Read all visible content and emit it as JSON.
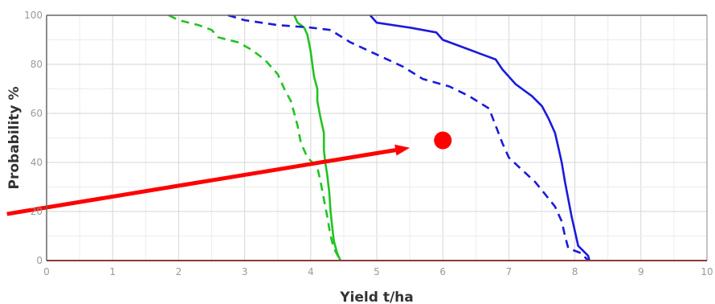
{
  "chart_data": {
    "type": "line",
    "title": "",
    "xlabel": "Yield t/ha",
    "ylabel": "Probability %",
    "xlim": [
      0,
      10
    ],
    "ylim": [
      0,
      100
    ],
    "xticks": [
      "0",
      "1",
      "2",
      "3",
      "4",
      "5",
      "6",
      "7",
      "8",
      "9",
      "10"
    ],
    "yticks": [
      "0",
      "20",
      "40",
      "60",
      "80",
      "100"
    ],
    "grid": true,
    "legend": "none",
    "colors": {
      "green": "#22c322",
      "blue": "#1a1adc",
      "marker": "#ff0000",
      "arrow": "#ff0000",
      "baseline": "#8b3a3a"
    },
    "series": [
      {
        "color": "#22c322",
        "dash": false,
        "points": [
          [
            3.75,
            100
          ],
          [
            3.8,
            97
          ],
          [
            3.9,
            95
          ],
          [
            3.95,
            92
          ],
          [
            4.0,
            85
          ],
          [
            4.05,
            75
          ],
          [
            4.1,
            70
          ],
          [
            4.1,
            65
          ],
          [
            4.15,
            58
          ],
          [
            4.2,
            52
          ],
          [
            4.2,
            45
          ],
          [
            4.22,
            40
          ],
          [
            4.25,
            35
          ],
          [
            4.28,
            28
          ],
          [
            4.3,
            20
          ],
          [
            4.32,
            15
          ],
          [
            4.35,
            8
          ],
          [
            4.4,
            3
          ],
          [
            4.45,
            0
          ]
        ]
      },
      {
        "color": "#22c322",
        "dash": true,
        "points": [
          [
            1.85,
            100
          ],
          [
            2.0,
            98
          ],
          [
            2.3,
            96
          ],
          [
            2.5,
            94
          ],
          [
            2.6,
            91
          ],
          [
            2.9,
            89
          ],
          [
            3.1,
            86
          ],
          [
            3.3,
            82
          ],
          [
            3.5,
            76
          ],
          [
            3.6,
            70
          ],
          [
            3.7,
            65
          ],
          [
            3.75,
            60
          ],
          [
            3.8,
            55
          ],
          [
            3.85,
            48
          ],
          [
            3.95,
            42
          ],
          [
            4.1,
            38
          ],
          [
            4.15,
            32
          ],
          [
            4.2,
            25
          ],
          [
            4.25,
            18
          ],
          [
            4.3,
            10
          ],
          [
            4.35,
            5
          ],
          [
            4.45,
            0
          ]
        ]
      },
      {
        "color": "#1a1adc",
        "dash": false,
        "points": [
          [
            4.9,
            100
          ],
          [
            5.0,
            97
          ],
          [
            5.5,
            95
          ],
          [
            5.9,
            93
          ],
          [
            6.0,
            90
          ],
          [
            6.3,
            87
          ],
          [
            6.6,
            84
          ],
          [
            6.8,
            82
          ],
          [
            6.9,
            78
          ],
          [
            7.0,
            75
          ],
          [
            7.1,
            72
          ],
          [
            7.2,
            70
          ],
          [
            7.35,
            67
          ],
          [
            7.5,
            63
          ],
          [
            7.6,
            58
          ],
          [
            7.7,
            52
          ],
          [
            7.75,
            46
          ],
          [
            7.8,
            40
          ],
          [
            7.85,
            32
          ],
          [
            7.9,
            25
          ],
          [
            7.95,
            18
          ],
          [
            8.0,
            12
          ],
          [
            8.05,
            6
          ],
          [
            8.2,
            2
          ],
          [
            8.22,
            0
          ]
        ]
      },
      {
        "color": "#1a1adc",
        "dash": true,
        "points": [
          [
            2.75,
            100
          ],
          [
            3.0,
            98
          ],
          [
            3.5,
            96
          ],
          [
            4.0,
            95
          ],
          [
            4.3,
            94
          ],
          [
            4.6,
            89
          ],
          [
            5.0,
            84
          ],
          [
            5.4,
            79
          ],
          [
            5.7,
            74
          ],
          [
            6.1,
            71
          ],
          [
            6.4,
            67
          ],
          [
            6.7,
            62
          ],
          [
            6.8,
            55
          ],
          [
            6.9,
            48
          ],
          [
            7.0,
            42
          ],
          [
            7.2,
            37
          ],
          [
            7.4,
            32
          ],
          [
            7.55,
            27
          ],
          [
            7.7,
            22
          ],
          [
            7.8,
            16
          ],
          [
            7.85,
            10
          ],
          [
            7.9,
            5
          ],
          [
            8.1,
            3
          ],
          [
            8.2,
            0
          ]
        ]
      }
    ],
    "annotations": [
      {
        "type": "point",
        "x": 6.0,
        "y": 49,
        "color": "#ff0000"
      },
      {
        "type": "arrow",
        "from": [
          -0.6,
          19
        ],
        "to": [
          5.5,
          46
        ],
        "color": "#ff0000"
      }
    ]
  }
}
